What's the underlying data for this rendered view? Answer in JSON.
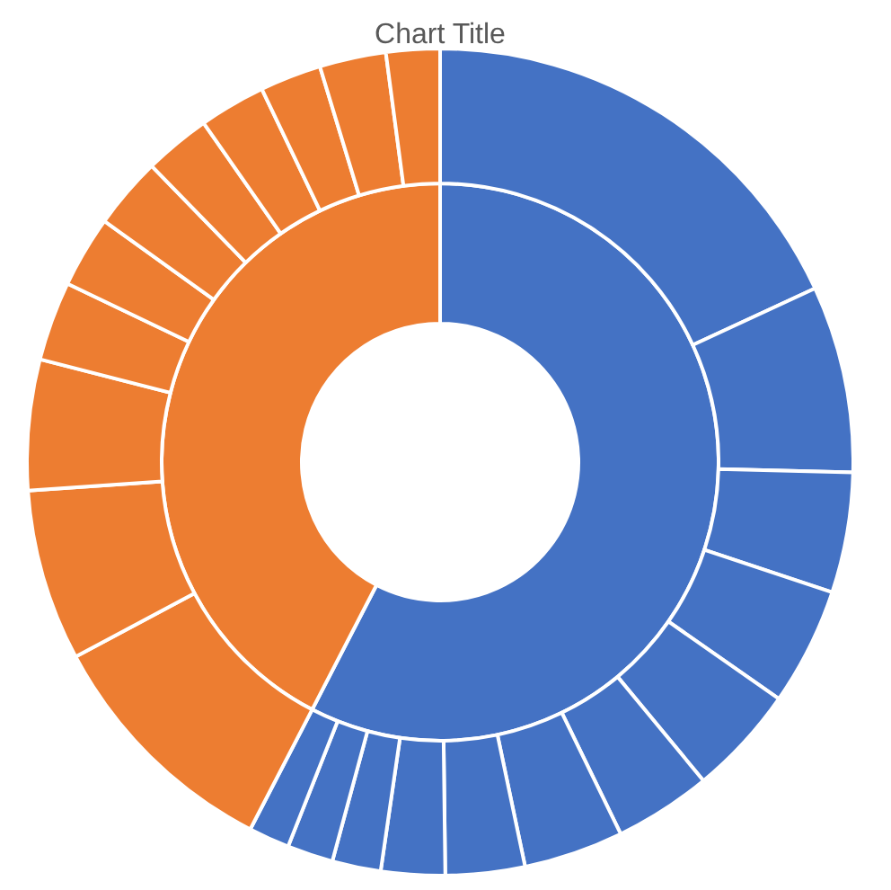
{
  "chart_data": {
    "type": "donut",
    "title": "Chart Title",
    "series": [
      {
        "values": [
          57.6,
          42.4
        ],
        "colors": [
          "#4472c4",
          "#ed7d31"
        ]
      },
      {
        "values": [
          18.1,
          7.3,
          4.7,
          4.6,
          4.3,
          3.8,
          3.9,
          3.1,
          2.5,
          1.9,
          1.8,
          1.6,
          9.6,
          6.7,
          5.1,
          3.1,
          2.8,
          2.8,
          2.6,
          2.6,
          2.4,
          2.6,
          2.1
        ],
        "colors": [
          "#4472c4",
          "#4472c4",
          "#4472c4",
          "#4472c4",
          "#4472c4",
          "#4472c4",
          "#4472c4",
          "#4472c4",
          "#4472c4",
          "#4472c4",
          "#4472c4",
          "#4472c4",
          "#ed7d31",
          "#ed7d31",
          "#ed7d31",
          "#ed7d31",
          "#ed7d31",
          "#ed7d31",
          "#ed7d31",
          "#ed7d31",
          "#ed7d31",
          "#ed7d31",
          "#ed7d31"
        ]
      }
    ]
  }
}
